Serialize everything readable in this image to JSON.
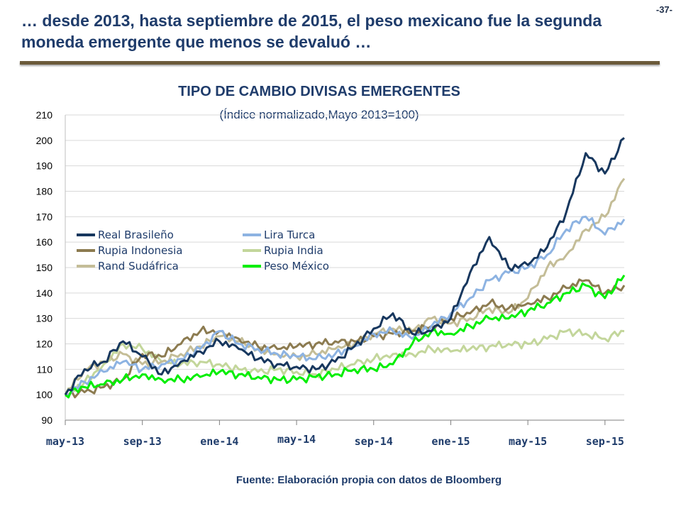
{
  "page": {
    "number": "-37-",
    "title": "… desde 2013, hasta septiembre de 2015, el peso mexicano fue la segunda moneda emergente que menos se devaluó …",
    "source": "Fuente: Elaboración propia con datos de Bloomberg"
  },
  "chart_data": {
    "type": "line",
    "title": "TIPO DE CAMBIO DIVISAS EMERGENTES",
    "subtitle": "(Índice normalizado,Mayo 2013=100)",
    "ylim": [
      90,
      210
    ],
    "yticks": [
      90,
      100,
      110,
      120,
      130,
      140,
      150,
      160,
      170,
      180,
      190,
      200,
      210
    ],
    "xlim": [
      "2013-05",
      "2015-10"
    ],
    "xtick_labels": [
      {
        "label": "may-13",
        "x": "2013-05"
      },
      {
        "label": "sep-13",
        "x": "2013-09"
      },
      {
        "label": "ene-14",
        "x": "2014-01"
      },
      {
        "label": "may-14",
        "x": "2014-05"
      },
      {
        "label": "sep-14",
        "x": "2014-09"
      },
      {
        "label": "ene-15",
        "x": "2015-01"
      },
      {
        "label": "may-15",
        "x": "2015-05"
      },
      {
        "label": "sep-15",
        "x": "2015-09"
      }
    ],
    "grid": "horizontal",
    "legend_position": "upper-left",
    "x": [
      "2013-05",
      "2013-06",
      "2013-07",
      "2013-08",
      "2013-09",
      "2013-10",
      "2013-11",
      "2013-12",
      "2014-01",
      "2014-02",
      "2014-03",
      "2014-04",
      "2014-05",
      "2014-06",
      "2014-07",
      "2014-08",
      "2014-09",
      "2014-10",
      "2014-11",
      "2014-12",
      "2015-01",
      "2015-02",
      "2015-03",
      "2015-04",
      "2015-05",
      "2015-06",
      "2015-07",
      "2015-08",
      "2015-09",
      "2015-10"
    ],
    "series": [
      {
        "name": "Real Brasileño",
        "color": "#17375e",
        "values": [
          100,
          110,
          113,
          121,
          115,
          108,
          113,
          117,
          121,
          118,
          114,
          112,
          111,
          110,
          113,
          119,
          126,
          132,
          124,
          125,
          130,
          148,
          162,
          150,
          151,
          158,
          172,
          195,
          187,
          201
        ]
      },
      {
        "name": "Lira Turca",
        "color": "#8db3e2",
        "values": [
          100,
          105,
          109,
          113,
          110,
          112,
          114,
          118,
          125,
          120,
          118,
          116,
          115,
          114,
          116,
          119,
          124,
          125,
          122,
          127,
          132,
          138,
          145,
          148,
          150,
          155,
          165,
          170,
          163,
          169
        ]
      },
      {
        "name": "Rupia Indonesia",
        "color": "#8c7b50",
        "values": [
          100,
          101,
          103,
          106,
          116,
          115,
          120,
          125,
          125,
          122,
          119,
          118,
          119,
          120,
          121,
          121,
          123,
          124,
          125,
          127,
          130,
          132,
          136,
          134,
          136,
          138,
          142,
          145,
          140,
          143
        ]
      },
      {
        "name": "Rupia India",
        "color": "#c3d69b",
        "values": [
          100,
          105,
          112,
          120,
          118,
          113,
          112,
          113,
          112,
          110,
          109,
          110,
          109,
          108,
          110,
          112,
          114,
          116,
          116,
          118,
          117,
          118,
          119,
          120,
          120,
          122,
          125,
          124,
          122,
          125
        ]
      },
      {
        "name": "Rand Sudáfrica",
        "color": "#c4bd97",
        "values": [
          100,
          110,
          113,
          116,
          112,
          113,
          116,
          119,
          123,
          121,
          118,
          116,
          115,
          116,
          118,
          120,
          124,
          126,
          125,
          130,
          128,
          130,
          134,
          132,
          138,
          150,
          155,
          165,
          170,
          185
        ]
      },
      {
        "name": "Peso México",
        "color": "#00ee00",
        "values": [
          100,
          103,
          104,
          106,
          108,
          106,
          106,
          107,
          109,
          108,
          107,
          106,
          106,
          107,
          108,
          110,
          110,
          112,
          120,
          125,
          124,
          127,
          130,
          130,
          133,
          136,
          140,
          143,
          138,
          147
        ]
      }
    ]
  }
}
